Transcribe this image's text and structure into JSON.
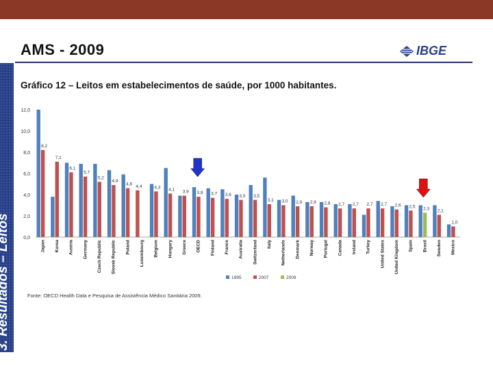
{
  "header": {
    "title": "AMS - 2009",
    "logo_text": "IBGE"
  },
  "sidebar": {
    "section_text": "3. Resultados – Leitos"
  },
  "subtitle": "Gráfico 12 – Leitos em estabelecimentos de saúde, por 1000 habitantes.",
  "source": "Fonte: OECD Health Data e Pesquisa de Assistência Médico Sanitária 2009.",
  "colors": {
    "s1995": "#4f81bd",
    "s2007": "#c0504d",
    "s2009": "#9bbb59",
    "arrow_blue": "#2233cc",
    "arrow_red": "#e01010",
    "top_bar": "#8b3826",
    "sidebar": "#273f86"
  },
  "chart_data": {
    "type": "bar",
    "categories": [
      "Japan",
      "Korea",
      "Austria",
      "Germany",
      "Czech Republic",
      "Slovak Republic",
      "Poland",
      "Luxembourg",
      "Belgium",
      "Hungary",
      "Greece",
      "OECD",
      "Finland",
      "France",
      "Australia",
      "Switzerland",
      "Italy",
      "Netherlands",
      "Denmark",
      "Norway",
      "Portugal",
      "Canada",
      "Ireland",
      "Turkey",
      "United States",
      "United Kingdom",
      "Spain",
      "Brasil",
      "Sweden",
      "Mexico"
    ],
    "series": [
      {
        "name": "1995",
        "values": [
          12.0,
          3.8,
          7.0,
          6.9,
          6.9,
          6.3,
          5.9,
          null,
          5.0,
          6.5,
          3.9,
          4.7,
          4.6,
          4.5,
          4.0,
          4.9,
          5.6,
          3.5,
          3.9,
          3.3,
          3.3,
          3.1,
          3.1,
          2.1,
          3.4,
          2.9,
          3.0,
          3.0,
          3.0,
          1.2
        ]
      },
      {
        "name": "2007",
        "values": [
          8.2,
          7.1,
          6.1,
          5.7,
          5.2,
          4.9,
          4.6,
          4.4,
          4.3,
          4.1,
          3.9,
          3.8,
          3.7,
          3.6,
          3.5,
          3.5,
          3.1,
          3.0,
          2.9,
          2.9,
          2.8,
          2.7,
          2.7,
          2.7,
          2.7,
          2.6,
          2.5,
          null,
          2.1,
          1.0
        ]
      },
      {
        "name": "2009",
        "values": [
          null,
          null,
          null,
          null,
          null,
          null,
          null,
          null,
          null,
          null,
          null,
          null,
          null,
          null,
          null,
          null,
          null,
          null,
          null,
          null,
          null,
          null,
          null,
          null,
          null,
          null,
          null,
          2.3,
          null,
          null
        ]
      }
    ],
    "data_labels": [
      "8,2",
      "7,1",
      "6,1",
      "5,7",
      "5,2",
      "4,9",
      "4,6",
      "4,4",
      "4,3",
      "4,1",
      "3,9",
      "3,8",
      "3,7",
      "3,6",
      "3,5",
      "3,5",
      "3,1",
      "3,0",
      "2,9",
      "2,9",
      "2,8",
      "2,7",
      "2,7",
      "2,7",
      "2,7",
      "2,6",
      "2,5",
      "2,3",
      "2,1",
      "1,0"
    ],
    "y_ticks": [
      "0,0",
      "2,0",
      "4,0",
      "6,0",
      "8,0",
      "10,0",
      "12,0"
    ],
    "ylim": [
      0,
      12
    ],
    "legend": [
      "1995",
      "2007",
      "2009"
    ],
    "legend_position": "bottom",
    "grid": false,
    "arrows": [
      {
        "category": "OECD",
        "color": "blue"
      },
      {
        "category": "Brasil",
        "color": "red"
      }
    ]
  }
}
